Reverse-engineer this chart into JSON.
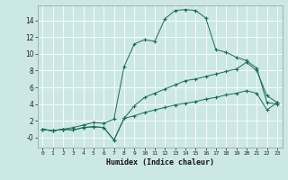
{
  "xlabel": "Humidex (Indice chaleur)",
  "bg_color": "#cce8e5",
  "grid_color": "#b0d8d4",
  "line_color": "#1a6b5a",
  "xlim": [
    -0.5,
    23.5
  ],
  "ylim": [
    -1.2,
    15.8
  ],
  "xticks": [
    0,
    1,
    2,
    3,
    4,
    5,
    6,
    7,
    8,
    9,
    10,
    11,
    12,
    13,
    14,
    15,
    16,
    17,
    18,
    19,
    20,
    21,
    22,
    23
  ],
  "yticks": [
    0,
    2,
    4,
    6,
    8,
    10,
    12,
    14
  ],
  "line1_x": [
    0,
    1,
    2,
    3,
    4,
    5,
    6,
    7,
    8,
    9,
    10,
    11,
    12,
    13,
    14,
    15,
    16,
    17,
    18,
    19,
    20,
    21,
    22,
    23
  ],
  "line1_y": [
    1.0,
    0.8,
    1.0,
    1.2,
    1.5,
    1.8,
    1.7,
    2.2,
    8.5,
    11.2,
    11.7,
    11.5,
    14.2,
    15.2,
    15.3,
    15.2,
    14.3,
    10.5,
    10.2,
    9.6,
    9.2,
    8.3,
    4.2,
    4.0
  ],
  "line2_x": [
    0,
    1,
    2,
    3,
    4,
    5,
    6,
    7,
    8,
    9,
    10,
    11,
    12,
    13,
    14,
    15,
    16,
    17,
    18,
    19,
    20,
    21,
    22,
    23
  ],
  "line2_y": [
    1.0,
    0.8,
    1.0,
    0.9,
    1.2,
    1.3,
    1.2,
    -0.3,
    2.3,
    3.8,
    4.8,
    5.3,
    5.8,
    6.3,
    6.8,
    7.0,
    7.3,
    7.6,
    7.9,
    8.2,
    9.0,
    8.0,
    5.0,
    4.2
  ],
  "line3_x": [
    0,
    1,
    2,
    3,
    4,
    5,
    6,
    7,
    8,
    9,
    10,
    11,
    12,
    13,
    14,
    15,
    16,
    17,
    18,
    19,
    20,
    21,
    22,
    23
  ],
  "line3_y": [
    1.0,
    0.8,
    1.0,
    0.9,
    1.2,
    1.3,
    1.2,
    -0.3,
    2.3,
    2.6,
    3.0,
    3.3,
    3.6,
    3.9,
    4.1,
    4.3,
    4.6,
    4.8,
    5.1,
    5.3,
    5.6,
    5.3,
    3.3,
    4.2
  ]
}
